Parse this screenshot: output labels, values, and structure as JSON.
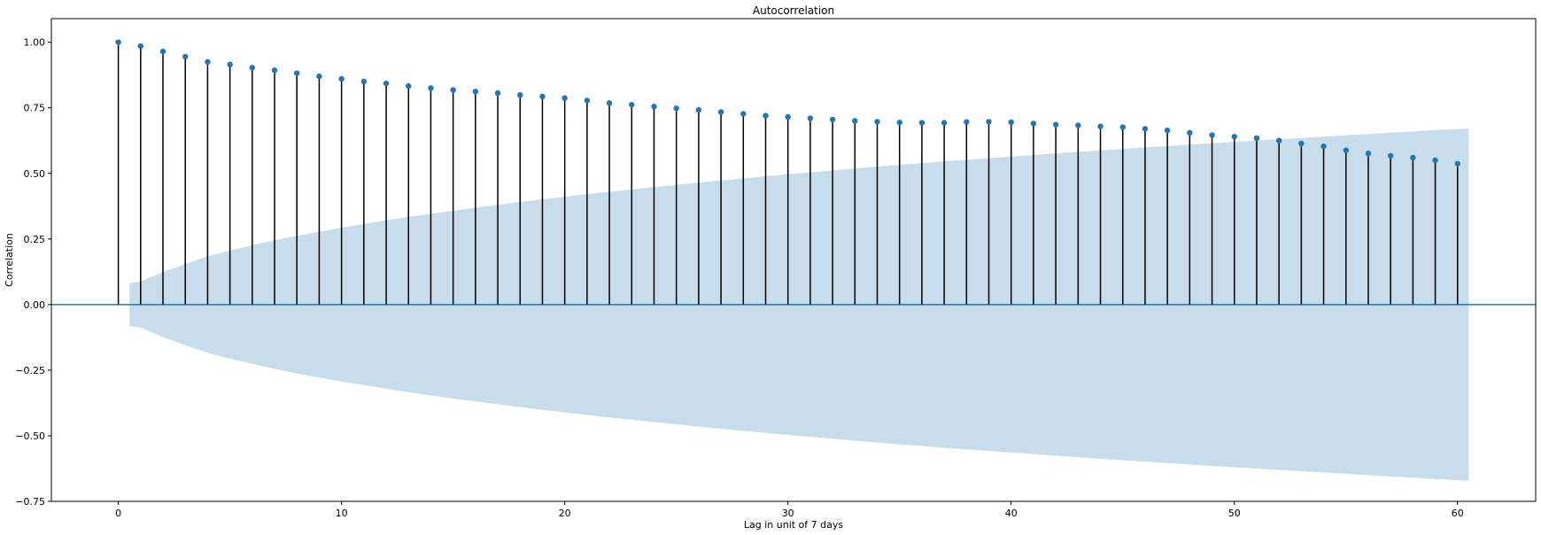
{
  "chart_data": {
    "type": "stem",
    "title": "Autocorrelation",
    "xlabel": "Lag in unit of 7 days",
    "ylabel": "Correlation",
    "xlim": [
      -3,
      63.5
    ],
    "ylim": [
      -0.75,
      1.09
    ],
    "x_ticks": [
      0,
      10,
      20,
      30,
      40,
      50,
      60
    ],
    "y_ticks": [
      -0.75,
      -0.5,
      -0.25,
      0.0,
      0.25,
      0.5,
      0.75,
      1.0
    ],
    "y_tick_labels": [
      "−0.75",
      "−0.50",
      "−0.25",
      "0.00",
      "0.25",
      "0.50",
      "0.75",
      "1.00"
    ],
    "lags": [
      0,
      1,
      2,
      3,
      4,
      5,
      6,
      7,
      8,
      9,
      10,
      11,
      12,
      13,
      14,
      15,
      16,
      17,
      18,
      19,
      20,
      21,
      22,
      23,
      24,
      25,
      26,
      27,
      28,
      29,
      30,
      31,
      32,
      33,
      34,
      35,
      36,
      37,
      38,
      39,
      40,
      41,
      42,
      43,
      44,
      45,
      46,
      47,
      48,
      49,
      50,
      51,
      52,
      53,
      54,
      55,
      56,
      57,
      58,
      59,
      60
    ],
    "values": [
      1.0,
      0.985,
      0.965,
      0.945,
      0.925,
      0.915,
      0.903,
      0.893,
      0.882,
      0.87,
      0.86,
      0.85,
      0.843,
      0.833,
      0.825,
      0.818,
      0.812,
      0.806,
      0.799,
      0.793,
      0.787,
      0.778,
      0.768,
      0.762,
      0.755,
      0.748,
      0.742,
      0.734,
      0.727,
      0.72,
      0.715,
      0.71,
      0.705,
      0.7,
      0.697,
      0.694,
      0.693,
      0.693,
      0.696,
      0.697,
      0.695,
      0.69,
      0.686,
      0.683,
      0.679,
      0.676,
      0.67,
      0.664,
      0.655,
      0.646,
      0.64,
      0.634,
      0.625,
      0.614,
      0.603,
      0.588,
      0.576,
      0.567,
      0.56,
      0.55,
      0.537
    ],
    "confint_lags": [
      0.5,
      1,
      2,
      3,
      4,
      5,
      6,
      7,
      8,
      9,
      10,
      11,
      12,
      13,
      14,
      15,
      16,
      17,
      18,
      19,
      20,
      21,
      22,
      23,
      24,
      25,
      26,
      27,
      28,
      29,
      30,
      31,
      32,
      33,
      34,
      35,
      36,
      37,
      38,
      39,
      40,
      41,
      42,
      43,
      44,
      45,
      46,
      47,
      48,
      49,
      50,
      51,
      52,
      53,
      54,
      55,
      56,
      57,
      58,
      59,
      60,
      60.5
    ],
    "confint_upper": [
      0.082,
      0.088,
      0.124,
      0.155,
      0.184,
      0.206,
      0.226,
      0.245,
      0.262,
      0.278,
      0.293,
      0.307,
      0.321,
      0.334,
      0.346,
      0.358,
      0.369,
      0.38,
      0.391,
      0.401,
      0.411,
      0.421,
      0.43,
      0.439,
      0.448,
      0.456,
      0.465,
      0.473,
      0.481,
      0.489,
      0.497,
      0.504,
      0.511,
      0.519,
      0.526,
      0.533,
      0.539,
      0.546,
      0.552,
      0.558,
      0.564,
      0.57,
      0.576,
      0.582,
      0.588,
      0.593,
      0.599,
      0.604,
      0.61,
      0.615,
      0.62,
      0.625,
      0.63,
      0.635,
      0.64,
      0.645,
      0.65,
      0.655,
      0.66,
      0.665,
      0.669,
      0.671
    ],
    "colors": {
      "marker": "#1f77b4",
      "stem": "#000000",
      "baseline": "#1f77b4",
      "confint": "#1f77b4"
    },
    "grid": false
  }
}
